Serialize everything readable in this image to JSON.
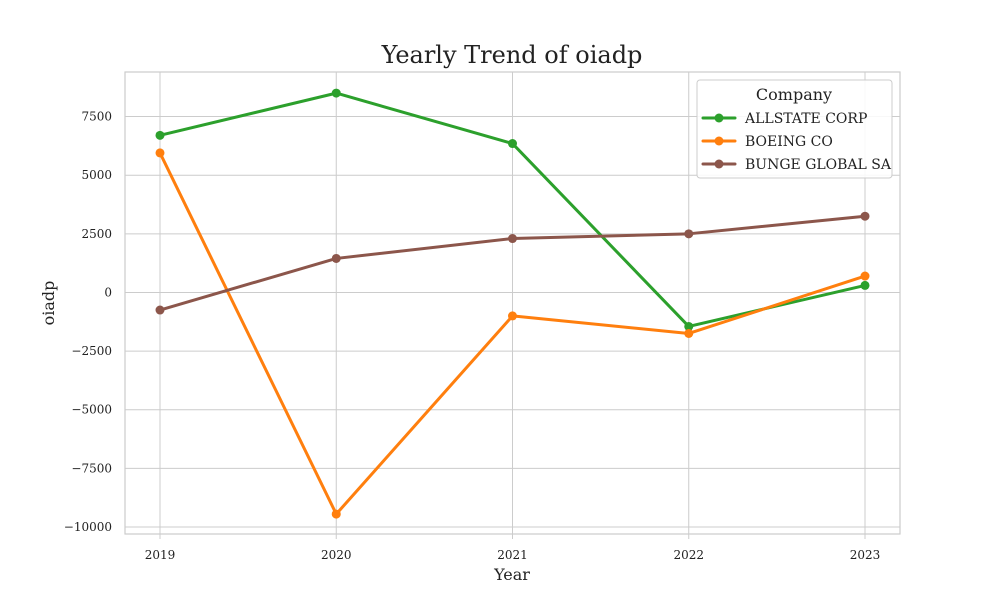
{
  "chart_data": {
    "type": "line",
    "title": "Yearly Trend of oiadp",
    "xlabel": "Year",
    "ylabel": "oiadp",
    "categories": [
      "2019",
      "2020",
      "2021",
      "2022",
      "2023"
    ],
    "y_ticks": [
      7500,
      5000,
      2500,
      0,
      -2500,
      -5000,
      -7500,
      -10000
    ],
    "y_tick_labels": [
      "7500",
      "5000",
      "2500",
      "0",
      "−2500",
      "−5000",
      "−7500",
      "−10000"
    ],
    "ylim": [
      -10300,
      9400
    ],
    "grid": true,
    "legend": {
      "title": "Company",
      "placement": "top-right"
    },
    "series": [
      {
        "name": "ALLSTATE CORP",
        "color": "#2ca02c",
        "values": [
          6700,
          8500,
          6350,
          -1450,
          300
        ]
      },
      {
        "name": "BOEING CO",
        "color": "#ff7f0e",
        "values": [
          5950,
          -9450,
          -1000,
          -1750,
          700
        ]
      },
      {
        "name": "BUNGE GLOBAL SA",
        "color": "#8c564b",
        "values": [
          -750,
          1450,
          2300,
          2500,
          3250
        ]
      }
    ]
  }
}
